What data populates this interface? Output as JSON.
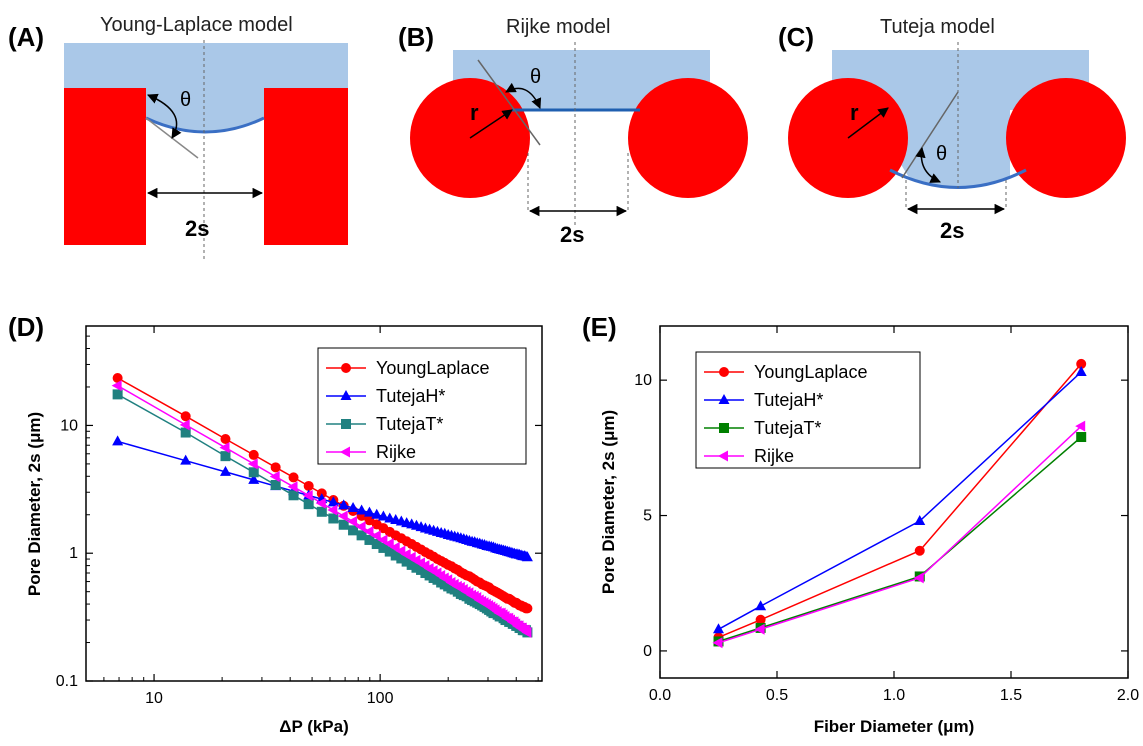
{
  "panels": {
    "A": {
      "label": "(A)",
      "title": "Young-Laplace model",
      "theta": "θ",
      "gap": "2s"
    },
    "B": {
      "label": "(B)",
      "title": "Rijke model",
      "theta": "θ",
      "radius": "r",
      "gap": "2s"
    },
    "C": {
      "label": "(C)",
      "title": "Tuteja model",
      "theta": "θ",
      "radius": "r",
      "gap": "2s"
    },
    "D": {
      "label": "(D)"
    },
    "E": {
      "label": "(E)"
    }
  },
  "colors": {
    "liquid": "#aac8e8",
    "solid": "#ff0000",
    "meniscus": "#3a6fc4",
    "YoungLaplace": "#ff0000",
    "TutejaH": "#0000ff",
    "TutejaT": "#208080",
    "TutejaT_E": "#008000",
    "Rijke": "#ff00ff"
  },
  "chart_data": [
    {
      "type": "line",
      "panel": "D",
      "xscale": "log",
      "yscale": "log",
      "xlabel": "ΔP (kPa)",
      "ylabel": "Pore Diameter, 2s (μm)",
      "xlim": [
        5,
        520
      ],
      "ylim": [
        0.1,
        60
      ],
      "xticks": [
        10,
        100
      ],
      "xtick_labels": [
        "10",
        "100"
      ],
      "yticks": [
        0.1,
        1,
        10
      ],
      "ytick_labels": [
        "0.1",
        "1",
        "10"
      ],
      "legend": "top-right",
      "x": [
        6.9,
        13.8,
        20.7,
        27.6,
        34.5,
        41.4,
        48.3,
        55.2,
        62.1,
        69.0,
        75.9,
        82.8,
        89.7,
        96.6,
        103.4,
        110.3,
        117.2,
        124.1,
        131.0,
        137.9,
        144.8,
        151.7,
        158.6,
        165.5,
        172.4,
        179.3,
        186.2,
        193.1,
        200.0,
        206.8,
        213.7,
        220.6,
        227.5,
        234.4,
        241.3,
        248.2,
        255.1,
        262.0,
        268.9,
        275.8,
        282.7,
        289.6,
        296.5,
        303.4,
        310.3,
        317.2,
        324.1,
        331.0,
        337.9,
        344.7,
        351.6,
        358.5,
        365.4,
        372.3,
        379.2,
        386.1,
        393.0,
        399.9,
        406.8,
        413.7,
        420.6,
        427.5,
        434.4,
        441.3,
        448.2
      ],
      "series": [
        {
          "name": "YoungLaplace",
          "marker": "circle",
          "values": [
            23.5,
            11.8,
            7.83,
            5.88,
            4.7,
            3.92,
            3.36,
            2.94,
            2.61,
            2.35,
            2.14,
            1.96,
            1.81,
            1.68,
            1.57,
            1.47,
            1.38,
            1.31,
            1.24,
            1.18,
            1.12,
            1.07,
            1.02,
            0.98,
            0.94,
            0.9,
            0.87,
            0.84,
            0.81,
            0.79,
            0.76,
            0.74,
            0.71,
            0.69,
            0.67,
            0.66,
            0.64,
            0.62,
            0.6,
            0.59,
            0.57,
            0.56,
            0.55,
            0.54,
            0.52,
            0.51,
            0.5,
            0.49,
            0.48,
            0.47,
            0.46,
            0.45,
            0.44,
            0.44,
            0.43,
            0.42,
            0.41,
            0.41,
            0.4,
            0.39,
            0.39,
            0.38,
            0.38,
            0.37,
            0.37
          ]
        },
        {
          "name": "TutejaH*",
          "marker": "triangle-up",
          "values": [
            7.5,
            5.3,
            4.33,
            3.75,
            3.35,
            3.06,
            2.83,
            2.65,
            2.5,
            2.37,
            2.26,
            2.16,
            2.08,
            2.0,
            1.94,
            1.87,
            1.82,
            1.77,
            1.72,
            1.68,
            1.64,
            1.6,
            1.56,
            1.53,
            1.5,
            1.47,
            1.44,
            1.42,
            1.39,
            1.37,
            1.35,
            1.33,
            1.31,
            1.29,
            1.27,
            1.25,
            1.23,
            1.22,
            1.2,
            1.19,
            1.17,
            1.16,
            1.14,
            1.13,
            1.12,
            1.11,
            1.09,
            1.08,
            1.07,
            1.06,
            1.05,
            1.04,
            1.03,
            1.02,
            1.01,
            1.0,
            0.99,
            0.98,
            0.98,
            0.97,
            0.96,
            0.95,
            0.95,
            0.94,
            0.93
          ]
        },
        {
          "name": "TutejaT*",
          "marker": "square",
          "values": [
            17.5,
            8.8,
            5.75,
            4.3,
            3.42,
            2.84,
            2.42,
            2.11,
            1.87,
            1.67,
            1.51,
            1.38,
            1.27,
            1.18,
            1.1,
            1.03,
            0.96,
            0.91,
            0.86,
            0.81,
            0.77,
            0.74,
            0.7,
            0.67,
            0.64,
            0.62,
            0.59,
            0.57,
            0.55,
            0.53,
            0.52,
            0.5,
            0.48,
            0.47,
            0.46,
            0.44,
            0.43,
            0.42,
            0.41,
            0.4,
            0.39,
            0.38,
            0.37,
            0.36,
            0.35,
            0.34,
            0.34,
            0.33,
            0.32,
            0.32,
            0.31,
            0.3,
            0.3,
            0.29,
            0.29,
            0.28,
            0.28,
            0.27,
            0.27,
            0.26,
            0.26,
            0.25,
            0.25,
            0.25,
            0.24
          ]
        },
        {
          "name": "Rijke",
          "marker": "triangle-left",
          "values": [
            20.5,
            10.1,
            6.7,
            5.0,
            3.98,
            3.31,
            2.83,
            2.46,
            2.18,
            1.95,
            1.77,
            1.61,
            1.48,
            1.37,
            1.27,
            1.19,
            1.11,
            1.04,
            0.98,
            0.93,
            0.88,
            0.84,
            0.8,
            0.76,
            0.73,
            0.7,
            0.67,
            0.64,
            0.62,
            0.59,
            0.57,
            0.55,
            0.54,
            0.52,
            0.5,
            0.49,
            0.47,
            0.46,
            0.45,
            0.43,
            0.42,
            0.41,
            0.4,
            0.39,
            0.38,
            0.37,
            0.36,
            0.35,
            0.34,
            0.34,
            0.33,
            0.32,
            0.31,
            0.31,
            0.3,
            0.29,
            0.29,
            0.28,
            0.27,
            0.27,
            0.26,
            0.26,
            0.25,
            0.25,
            0.24
          ]
        }
      ]
    },
    {
      "type": "line",
      "panel": "E",
      "xlabel": "Fiber Diameter (μm)",
      "ylabel": "Pore Diameter, 2s (μm)",
      "xlim": [
        0.0,
        2.0
      ],
      "ylim": [
        -1,
        12
      ],
      "xticks": [
        0.0,
        0.5,
        1.0,
        1.5,
        2.0
      ],
      "xtick_labels": [
        "0.0",
        "0.5",
        "1.0",
        "1.5",
        "2.0"
      ],
      "yticks": [
        0,
        5,
        10
      ],
      "ytick_labels": [
        "0",
        "5",
        "10"
      ],
      "legend": "top-left",
      "x": [
        0.25,
        0.43,
        1.11,
        1.8
      ],
      "series": [
        {
          "name": "YoungLaplace",
          "marker": "circle",
          "values": [
            0.5,
            1.15,
            3.7,
            10.6
          ]
        },
        {
          "name": "TutejaH*",
          "marker": "triangle-up",
          "values": [
            0.8,
            1.65,
            4.8,
            10.3
          ]
        },
        {
          "name": "TutejaT*",
          "marker": "square",
          "values": [
            0.35,
            0.85,
            2.75,
            7.9
          ]
        },
        {
          "name": "Rijke",
          "marker": "triangle-left",
          "values": [
            0.3,
            0.8,
            2.7,
            8.3
          ]
        }
      ]
    }
  ]
}
